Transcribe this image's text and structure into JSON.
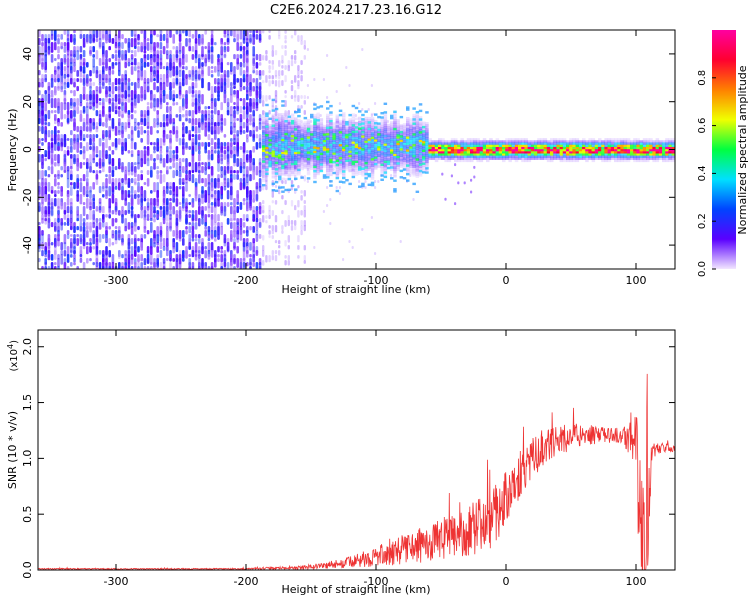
{
  "title": "C2E6.2024.217.23.16.G12",
  "chart_data": [
    {
      "type": "heatmap",
      "xlabel": "Height of straight line (km)",
      "ylabel": "Frequency (Hz)",
      "xlim": [
        -360,
        130
      ],
      "ylim": [
        -50,
        50
      ],
      "xticks": [
        -300,
        -200,
        -100,
        0,
        100
      ],
      "yticks": [
        -40,
        -20,
        0,
        20,
        40
      ],
      "colorbar": {
        "label": "Normalized spectral amplitude",
        "range": [
          0,
          1
        ],
        "ticks": [
          "0.0",
          "0.2",
          "0.4",
          "0.6",
          "0.8"
        ],
        "colormap": [
          "#f2e6ff",
          "#5a00ff",
          "#0044ff",
          "#00e0ff",
          "#00ff40",
          "#f0ff00",
          "#ff8000",
          "#ff0030",
          "#ff00a0"
        ]
      },
      "regions": [
        {
          "x_from": -360,
          "x_to": -190,
          "description_values": {
            "freq_spread_hz": 50,
            "amplitude": 0.12
          }
        },
        {
          "x_from": -190,
          "x_to": -155,
          "description_values": {
            "freq_spread_hz": 50,
            "amplitude": 0.05
          }
        },
        {
          "x_from": -190,
          "x_to": -60,
          "description_values": {
            "center_hz": 2,
            "band_halfwidth_hz": 8,
            "amplitude": 0.3
          }
        },
        {
          "x_from": -60,
          "x_to": 130,
          "description_values": {
            "center_hz": 0.5,
            "band_halfwidth_hz": 3,
            "amplitude": 0.85
          }
        }
      ]
    },
    {
      "type": "line",
      "xlabel": "Height of straight line (km)",
      "ylabel": "SNR (10 * v/v)",
      "scale_label": "(x10",
      "scale_exp": "4",
      "scale_close": ")",
      "xlim": [
        -360,
        130
      ],
      "ylim": [
        0,
        2.15
      ],
      "xticks": [
        -300,
        -200,
        -100,
        0,
        100
      ],
      "yticks": [
        "0.0",
        "0.5",
        "1.0",
        "1.5",
        "2.0"
      ],
      "series": [
        {
          "color": "#ee3333",
          "x": [
            -360,
            -300,
            -250,
            -200,
            -160,
            -140,
            -120,
            -100,
            -80,
            -60,
            -40,
            -20,
            -10,
            0,
            10,
            20,
            30,
            40,
            50,
            60,
            70,
            80,
            90,
            100,
            103,
            105,
            107,
            109,
            112,
            120,
            130
          ],
          "y": [
            0.01,
            0.01,
            0.01,
            0.01,
            0.02,
            0.04,
            0.07,
            0.12,
            0.18,
            0.24,
            0.3,
            0.4,
            0.48,
            0.65,
            0.85,
            1.0,
            1.1,
            1.15,
            1.2,
            1.22,
            1.2,
            1.21,
            1.2,
            1.18,
            0.7,
            0.3,
            0.05,
            0.4,
            1.05,
            1.1,
            1.08
          ],
          "noise_amplitude": [
            0.005,
            0.005,
            0.005,
            0.006,
            0.015,
            0.03,
            0.05,
            0.09,
            0.13,
            0.17,
            0.2,
            0.25,
            0.28,
            0.25,
            0.22,
            0.18,
            0.15,
            0.14,
            0.12,
            0.1,
            0.08,
            0.07,
            0.07,
            0.25,
            0.6,
            0.7,
            0.7,
            0.6,
            0.08,
            0.04,
            0.03
          ]
        }
      ]
    }
  ]
}
